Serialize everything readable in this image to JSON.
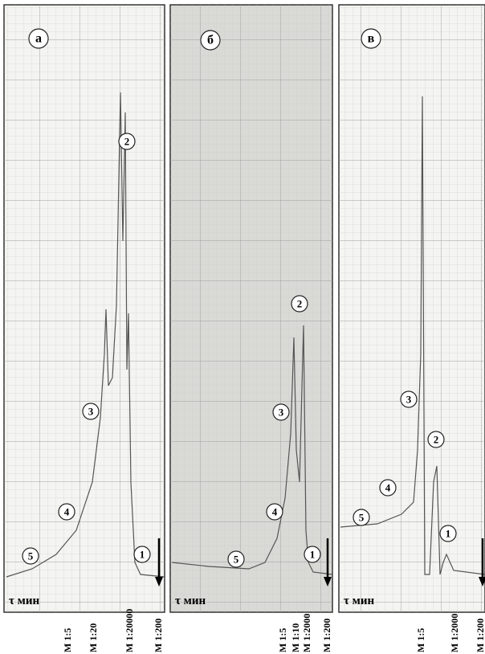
{
  "panels": [
    {
      "label": "а",
      "axis_label": "τ мин",
      "peaks": [
        "1",
        "2",
        "3",
        "4",
        "5"
      ],
      "scales": [
        "M 1:5",
        "M 1:20",
        "M 1:20000",
        "M 1:200"
      ]
    },
    {
      "label": "б",
      "axis_label": "τ мин",
      "peaks": [
        "1",
        "2",
        "3",
        "4",
        "5"
      ],
      "scales": [
        "M 1:5",
        "M 1:10",
        "M 1:2000",
        "M 1:200"
      ]
    },
    {
      "label": "в",
      "axis_label": "τ мин",
      "peaks": [
        "1",
        "2",
        "3",
        "4",
        "5"
      ],
      "scales": [
        "M 1:5",
        "M 1:2000",
        "M 1:200"
      ]
    }
  ]
}
